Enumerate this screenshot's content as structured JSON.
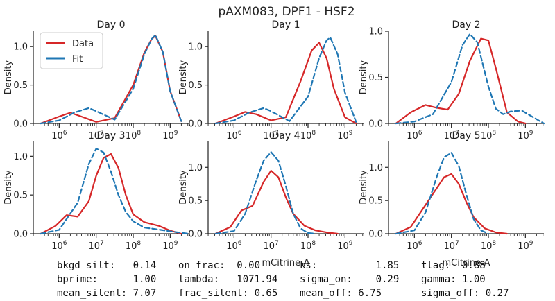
{
  "title": "pAXM083, DPF1 - HSF2",
  "legend": {
    "items": [
      {
        "label": "Data",
        "color": "#d62728",
        "style": "solid"
      },
      {
        "label": "Fit",
        "color": "#1f77b4",
        "style": "dashed"
      }
    ],
    "location": "upper-left"
  },
  "stats": [
    [
      "bkgd silt:   0.14",
      "on frac:  0.00",
      "ks:          1.85",
      "tlag:  0.88"
    ],
    [
      "bprime:      1.00",
      "lambda:   1071.94",
      "sigma_on:    0.29",
      "gamma: 1.00"
    ],
    [
      "mean_silent: 7.07",
      "frac_silent: 0.65",
      "mean_off: 6.75",
      "sigma_off: 0.27"
    ]
  ],
  "chart_data": [
    {
      "type": "line",
      "title": "Day 0",
      "xlabel": "",
      "ylabel": "Density",
      "xscale": "log",
      "xlim": [
        5.3,
        9.5
      ],
      "ylim": [
        0,
        1.2
      ],
      "xticks": [
        "10^6",
        "10^7",
        "10^8",
        "10^9"
      ],
      "yticks": [
        "0.0",
        "0.5",
        "1.0"
      ],
      "series": [
        {
          "name": "Data",
          "color": "#d62728",
          "dash": false,
          "x": [
            5.5,
            6.0,
            6.3,
            6.6,
            7.0,
            7.5,
            8.0,
            8.3,
            8.5,
            8.6,
            8.8,
            9.0,
            9.3
          ],
          "y": [
            0.0,
            0.09,
            0.14,
            0.09,
            0.02,
            0.07,
            0.5,
            0.92,
            1.1,
            1.14,
            0.93,
            0.42,
            0.03
          ]
        },
        {
          "name": "Fit",
          "color": "#1f77b4",
          "dash": true,
          "x": [
            5.5,
            6.0,
            6.4,
            6.8,
            7.0,
            7.5,
            8.0,
            8.3,
            8.5,
            8.6,
            8.8,
            9.0,
            9.3
          ],
          "y": [
            0.0,
            0.04,
            0.14,
            0.2,
            0.16,
            0.05,
            0.45,
            0.9,
            1.1,
            1.15,
            0.93,
            0.42,
            0.03
          ]
        }
      ]
    },
    {
      "type": "line",
      "title": "Day 1",
      "xlabel": "",
      "ylabel": "Density",
      "xscale": "log",
      "xlim": [
        5.3,
        9.5
      ],
      "ylim": [
        0,
        1.2
      ],
      "xticks": [
        "10^6",
        "10^7",
        "10^8",
        "10^9"
      ],
      "yticks": [
        "0.0",
        "0.5",
        "1.0"
      ],
      "series": [
        {
          "name": "Data",
          "color": "#d62728",
          "dash": false,
          "x": [
            5.5,
            6.0,
            6.3,
            6.6,
            7.0,
            7.4,
            7.8,
            8.1,
            8.3,
            8.5,
            8.7,
            9.0,
            9.3
          ],
          "y": [
            0.0,
            0.09,
            0.15,
            0.12,
            0.04,
            0.08,
            0.55,
            0.95,
            1.05,
            0.85,
            0.45,
            0.08,
            0.0
          ]
        },
        {
          "name": "Fit",
          "color": "#1f77b4",
          "dash": true,
          "x": [
            5.5,
            6.0,
            6.4,
            6.8,
            7.0,
            7.5,
            8.0,
            8.3,
            8.5,
            8.6,
            8.8,
            9.0,
            9.3
          ],
          "y": [
            0.0,
            0.04,
            0.14,
            0.2,
            0.16,
            0.03,
            0.35,
            0.85,
            1.08,
            1.12,
            0.9,
            0.4,
            0.02
          ]
        }
      ]
    },
    {
      "type": "line",
      "title": "Day 2",
      "xlabel": "",
      "ylabel": "Density",
      "xscale": "log",
      "xlim": [
        5.3,
        9.5
      ],
      "ylim": [
        0,
        1.0
      ],
      "xticks": [
        "10^6",
        "10^7",
        "10^8",
        "10^9"
      ],
      "yticks": [
        "0.0",
        "0.5",
        "1.0"
      ],
      "series": [
        {
          "name": "Data",
          "color": "#d62728",
          "dash": false,
          "x": [
            5.5,
            5.9,
            6.3,
            6.6,
            6.9,
            7.2,
            7.5,
            7.8,
            8.0,
            8.2,
            8.5,
            8.8,
            9.0
          ],
          "y": [
            0.0,
            0.12,
            0.2,
            0.17,
            0.15,
            0.32,
            0.68,
            0.92,
            0.9,
            0.6,
            0.12,
            0.02,
            0.0
          ]
        },
        {
          "name": "Fit",
          "color": "#1f77b4",
          "dash": true,
          "x": [
            5.5,
            6.0,
            6.5,
            7.0,
            7.3,
            7.5,
            7.7,
            8.0,
            8.2,
            8.4,
            8.6,
            8.9,
            9.2,
            9.5
          ],
          "y": [
            0.0,
            0.02,
            0.1,
            0.45,
            0.85,
            0.97,
            0.88,
            0.4,
            0.16,
            0.1,
            0.13,
            0.14,
            0.07,
            0.0
          ]
        }
      ]
    },
    {
      "type": "line",
      "title": "Day 3",
      "xlabel": "",
      "ylabel": "Density",
      "xscale": "log",
      "xlim": [
        5.3,
        9.5
      ],
      "ylim": [
        0,
        1.2
      ],
      "xticks": [
        "10^6",
        "10^7",
        "10^8",
        "10^9"
      ],
      "yticks": [
        "0.0",
        "0.5",
        "1.0"
      ],
      "series": [
        {
          "name": "Data",
          "color": "#d62728",
          "dash": false,
          "x": [
            5.5,
            5.9,
            6.2,
            6.5,
            6.8,
            7.0,
            7.2,
            7.4,
            7.6,
            7.8,
            8.0,
            8.3,
            8.7,
            9.0,
            9.3
          ],
          "y": [
            0.0,
            0.1,
            0.24,
            0.22,
            0.42,
            0.75,
            0.98,
            1.03,
            0.85,
            0.5,
            0.25,
            0.15,
            0.1,
            0.04,
            0.0
          ]
        },
        {
          "name": "Fit",
          "color": "#1f77b4",
          "dash": true,
          "x": [
            5.5,
            6.0,
            6.5,
            6.8,
            7.0,
            7.2,
            7.4,
            7.6,
            7.8,
            8.0,
            8.3,
            8.6,
            9.0,
            9.5
          ],
          "y": [
            0.0,
            0.05,
            0.4,
            0.9,
            1.1,
            1.05,
            0.8,
            0.5,
            0.28,
            0.16,
            0.08,
            0.06,
            0.03,
            0.0
          ]
        }
      ]
    },
    {
      "type": "line",
      "title": "Day 4",
      "xlabel": "mCitrine-A",
      "ylabel": "Density",
      "xscale": "log",
      "xlim": [
        5.3,
        9.5
      ],
      "ylim": [
        0,
        1.4
      ],
      "xticks": [
        "10^6",
        "10^7",
        "10^8",
        "10^9"
      ],
      "yticks": [
        "0.0",
        "0.5",
        "1.0"
      ],
      "series": [
        {
          "name": "Data",
          "color": "#d62728",
          "dash": false,
          "x": [
            5.5,
            5.9,
            6.2,
            6.5,
            6.8,
            7.0,
            7.2,
            7.4,
            7.6,
            7.9,
            8.2,
            8.5,
            8.8
          ],
          "y": [
            0.0,
            0.1,
            0.35,
            0.42,
            0.78,
            0.95,
            0.85,
            0.55,
            0.3,
            0.12,
            0.05,
            0.02,
            0.0
          ]
        },
        {
          "name": "Fit",
          "color": "#1f77b4",
          "dash": true,
          "x": [
            5.5,
            6.0,
            6.3,
            6.6,
            6.8,
            7.0,
            7.2,
            7.4,
            7.6,
            7.8,
            8.0,
            8.2
          ],
          "y": [
            0.0,
            0.04,
            0.3,
            0.8,
            1.1,
            1.23,
            1.1,
            0.72,
            0.3,
            0.08,
            0.01,
            0.0
          ]
        }
      ]
    },
    {
      "type": "line",
      "title": "Day 5",
      "xlabel": "mCitrine-A",
      "ylabel": "Density",
      "xscale": "log",
      "xlim": [
        5.3,
        9.5
      ],
      "ylim": [
        0,
        1.4
      ],
      "xticks": [
        "10^6",
        "10^7",
        "10^8",
        "10^9"
      ],
      "yticks": [
        "0.0",
        "0.5",
        "1.0"
      ],
      "series": [
        {
          "name": "Data",
          "color": "#d62728",
          "dash": false,
          "x": [
            5.5,
            5.9,
            6.2,
            6.5,
            6.8,
            7.0,
            7.2,
            7.4,
            7.6,
            7.9,
            8.2,
            8.5
          ],
          "y": [
            0.0,
            0.1,
            0.35,
            0.6,
            0.85,
            0.9,
            0.75,
            0.48,
            0.25,
            0.08,
            0.02,
            0.0
          ]
        },
        {
          "name": "Fit",
          "color": "#1f77b4",
          "dash": true,
          "x": [
            5.5,
            6.0,
            6.3,
            6.6,
            6.8,
            7.0,
            7.2,
            7.4,
            7.6,
            7.8,
            8.0
          ],
          "y": [
            0.0,
            0.05,
            0.32,
            0.85,
            1.15,
            1.22,
            1.02,
            0.6,
            0.22,
            0.05,
            0.0
          ]
        }
      ]
    }
  ]
}
